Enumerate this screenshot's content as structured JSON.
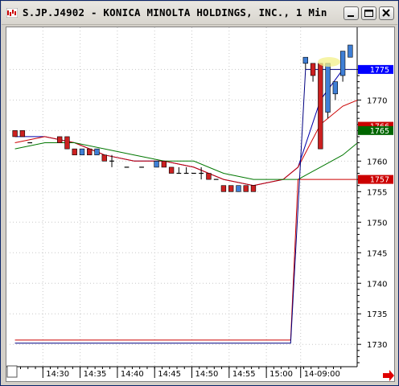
{
  "window": {
    "title": "S.JP.J4902 - KONICA MINOLTA HOLDINGS, INC., 1 Min",
    "buttons": [
      "minimize",
      "maximize",
      "close"
    ]
  },
  "chart_data": {
    "type": "candlestick",
    "ylim": [
      1727,
      1779
    ],
    "y_ticks": [
      "1775",
      "1770",
      "1765",
      "1760",
      "1755",
      "1750",
      "1745",
      "1740",
      "1735",
      "1730"
    ],
    "x_ticks": [
      "14:30",
      "14:35",
      "14:40",
      "14:45",
      "14:50",
      "14:55",
      "15:00",
      "14-09:00"
    ],
    "price_labels": [
      {
        "text": "1775",
        "value": 1775.0,
        "bg": "#0000ff",
        "fg": "#ffffff"
      },
      {
        "text": "1766",
        "value": 1765.7,
        "bg": "#cc0000",
        "fg": "#ffffff"
      },
      {
        "text": "1765",
        "value": 1765.0,
        "bg": "#006600",
        "fg": "#ffffff"
      },
      {
        "text": "1757",
        "value": 1757.0,
        "bg": "#cc0000",
        "fg": "#ffffff"
      }
    ],
    "candles": [
      {
        "i": 0,
        "o": 1765,
        "h": 1765,
        "l": 1764,
        "c": 1764
      },
      {
        "i": 1,
        "o": 1765,
        "h": 1765,
        "l": 1764,
        "c": 1764
      },
      {
        "i": 2,
        "o": 1763,
        "h": 1763,
        "l": 1763,
        "c": 1763
      },
      {
        "i": 6,
        "o": 1764,
        "h": 1764,
        "l": 1763,
        "c": 1763
      },
      {
        "i": 7,
        "o": 1764,
        "h": 1764,
        "l": 1762,
        "c": 1762
      },
      {
        "i": 8,
        "o": 1762,
        "h": 1762,
        "l": 1761,
        "c": 1761
      },
      {
        "i": 9,
        "o": 1761,
        "h": 1762,
        "l": 1761,
        "c": 1762
      },
      {
        "i": 10,
        "o": 1762,
        "h": 1762,
        "l": 1761,
        "c": 1761
      },
      {
        "i": 11,
        "o": 1761,
        "h": 1762,
        "l": 1761,
        "c": 1762
      },
      {
        "i": 12,
        "o": 1761,
        "h": 1761,
        "l": 1760,
        "c": 1760
      },
      {
        "i": 13,
        "o": 1760,
        "h": 1761,
        "l": 1759,
        "c": 1760
      },
      {
        "i": 15,
        "o": 1759,
        "h": 1759,
        "l": 1759,
        "c": 1759
      },
      {
        "i": 17,
        "o": 1759,
        "h": 1759,
        "l": 1759,
        "c": 1759
      },
      {
        "i": 19,
        "o": 1759,
        "h": 1760,
        "l": 1759,
        "c": 1760
      },
      {
        "i": 20,
        "o": 1760,
        "h": 1760,
        "l": 1759,
        "c": 1759
      },
      {
        "i": 21,
        "o": 1759,
        "h": 1759,
        "l": 1758,
        "c": 1758
      },
      {
        "i": 22,
        "o": 1758,
        "h": 1759,
        "l": 1758,
        "c": 1758
      },
      {
        "i": 23,
        "o": 1758,
        "h": 1759,
        "l": 1758,
        "c": 1758
      },
      {
        "i": 24,
        "o": 1758,
        "h": 1758,
        "l": 1758,
        "c": 1758
      },
      {
        "i": 25,
        "o": 1758,
        "h": 1759,
        "l": 1757,
        "c": 1758
      },
      {
        "i": 26,
        "o": 1758,
        "h": 1758,
        "l": 1757,
        "c": 1757
      },
      {
        "i": 27,
        "o": 1757,
        "h": 1757,
        "l": 1757,
        "c": 1757
      },
      {
        "i": 28,
        "o": 1756,
        "h": 1756,
        "l": 1755,
        "c": 1755
      },
      {
        "i": 29,
        "o": 1756,
        "h": 1756,
        "l": 1755,
        "c": 1755
      },
      {
        "i": 30,
        "o": 1755,
        "h": 1756,
        "l": 1755,
        "c": 1756
      },
      {
        "i": 31,
        "o": 1756,
        "h": 1756,
        "l": 1755,
        "c": 1755
      },
      {
        "i": 32,
        "o": 1756,
        "h": 1756,
        "l": 1755,
        "c": 1755
      },
      {
        "i": 39,
        "o": 1776,
        "h": 1777,
        "l": 1775,
        "c": 1777
      },
      {
        "i": 40,
        "o": 1776,
        "h": 1776,
        "l": 1773,
        "c": 1774
      },
      {
        "i": 41,
        "o": 1776,
        "h": 1776,
        "l": 1762,
        "c": 1762
      },
      {
        "i": 42,
        "o": 1768,
        "h": 1776,
        "l": 1767,
        "c": 1776
      },
      {
        "i": 43,
        "o": 1771,
        "h": 1773,
        "l": 1770,
        "c": 1773
      },
      {
        "i": 44,
        "o": 1774,
        "h": 1778,
        "l": 1773,
        "c": 1778
      },
      {
        "i": 45,
        "o": 1777,
        "h": 1779,
        "l": 1777,
        "c": 1779
      }
    ],
    "candle_colors": {
      "up": "#3f7fd6",
      "down": "#cc2020",
      "wick": "#000000"
    },
    "series": [
      {
        "color": "#0000aa",
        "points": [
          [
            0,
            1764
          ],
          [
            4,
            1764
          ],
          [
            8,
            1763
          ],
          [
            12,
            1761
          ],
          [
            16,
            1760
          ],
          [
            20,
            1760
          ],
          [
            24,
            1759
          ],
          [
            28,
            1757
          ],
          [
            32,
            1756
          ],
          [
            36,
            1757
          ],
          [
            38,
            1759
          ],
          [
            41,
            1770
          ],
          [
            44,
            1775
          ]
        ]
      },
      {
        "color": "#cc0000",
        "points": [
          [
            0,
            1763
          ],
          [
            4,
            1764
          ],
          [
            8,
            1763
          ],
          [
            12,
            1761
          ],
          [
            16,
            1760
          ],
          [
            20,
            1760
          ],
          [
            24,
            1759
          ],
          [
            28,
            1757
          ],
          [
            32,
            1756
          ],
          [
            36,
            1757
          ],
          [
            38,
            1759
          ],
          [
            41,
            1766
          ],
          [
            44,
            1769
          ],
          [
            46,
            1770
          ]
        ]
      },
      {
        "color": "#007700",
        "points": [
          [
            0,
            1762
          ],
          [
            4,
            1763
          ],
          [
            8,
            1763
          ],
          [
            12,
            1762
          ],
          [
            16,
            1761
          ],
          [
            20,
            1760
          ],
          [
            24,
            1760
          ],
          [
            28,
            1758
          ],
          [
            32,
            1757
          ],
          [
            36,
            1757
          ],
          [
            38,
            1757
          ],
          [
            41,
            1759
          ],
          [
            44,
            1761
          ],
          [
            46,
            1763
          ]
        ]
      },
      {
        "color": "#cc0000",
        "points": [
          [
            0,
            1730.7
          ],
          [
            37,
            1730.7
          ],
          [
            38,
            1757
          ],
          [
            46,
            1757
          ]
        ]
      },
      {
        "color": "#000080",
        "points": [
          [
            0,
            1730.2
          ],
          [
            37,
            1730.2
          ],
          [
            39,
            1775
          ],
          [
            40,
            1775
          ],
          [
            44,
            1775
          ],
          [
            46,
            1775
          ]
        ]
      }
    ],
    "bar_count": 46
  }
}
